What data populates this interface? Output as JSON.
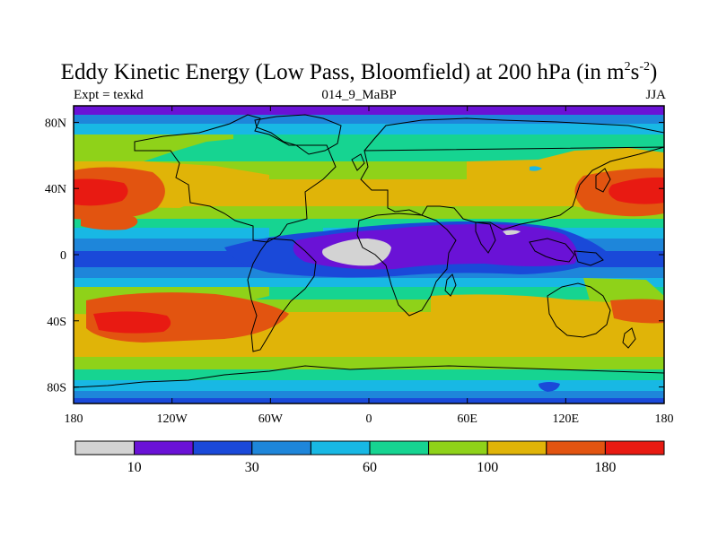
{
  "title": {
    "main": "Eddy Kinetic Energy (Low Pass, Bloomfield) at 200 hPa (in m",
    "sup1": "2",
    "mid": "s",
    "sup2": "-2",
    "end": ")"
  },
  "subtitle_left": "Expt = texkd",
  "subtitle_center": "014_9_MaBP",
  "subtitle_right": "JJA",
  "lat_ticks": [
    {
      "label": "80N",
      "lat": 80
    },
    {
      "label": "40N",
      "lat": 40
    },
    {
      "label": "0",
      "lat": 0
    },
    {
      "label": "40S",
      "lat": -40
    },
    {
      "label": "80S",
      "lat": -80
    }
  ],
  "lon_ticks": [
    {
      "label": "180",
      "lon": -180
    },
    {
      "label": "120W",
      "lon": -120
    },
    {
      "label": "60W",
      "lon": -60
    },
    {
      "label": "0",
      "lon": 0
    },
    {
      "label": "60E",
      "lon": 60
    },
    {
      "label": "120E",
      "lon": 120
    },
    {
      "label": "180",
      "lon": 180
    }
  ],
  "colorbar": {
    "colors": [
      "#d3d3d3",
      "#6a12d6",
      "#1a49d9",
      "#1e86da",
      "#18b8e4",
      "#16d491",
      "#8fd219",
      "#e0b408",
      "#e25410",
      "#e81a12"
    ],
    "labels": [
      {
        "text": "10",
        "boundary": 1
      },
      {
        "text": "30",
        "boundary": 3
      },
      {
        "text": "60",
        "boundary": 5
      },
      {
        "text": "100",
        "boundary": 7
      },
      {
        "text": "180",
        "boundary": 9
      }
    ]
  }
}
